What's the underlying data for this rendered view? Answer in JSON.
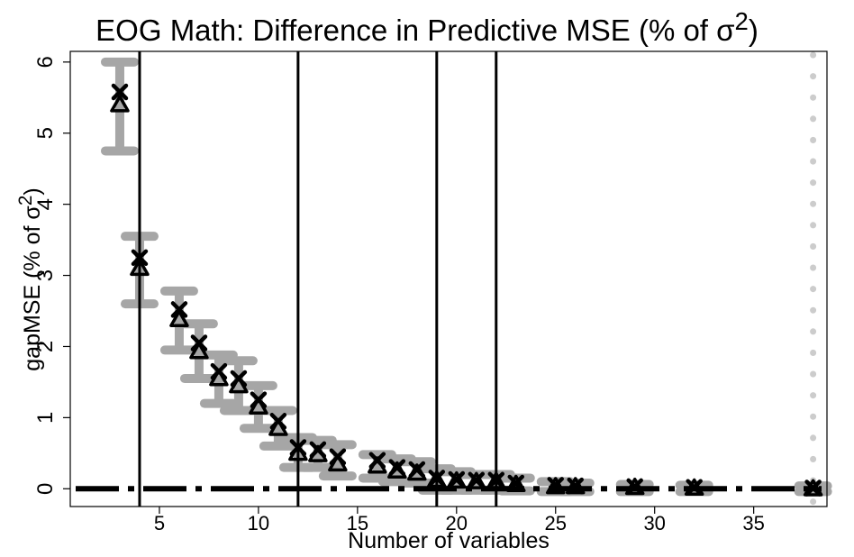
{
  "chart_data": {
    "type": "scatter",
    "title": "EOG Math: Difference in Predictive MSE (% of σ",
    "title_sup": "2",
    "title_end": ")",
    "xlabel": "Number of variables",
    "ylabel": "gapMSE (% of σ",
    "ylabel_sup": "2",
    "ylabel_end": ")",
    "xlim": [
      0.5,
      38.7
    ],
    "ylim": [
      -0.25,
      6.15
    ],
    "xticks": [
      5,
      10,
      15,
      20,
      25,
      30,
      35
    ],
    "yticks": [
      0,
      1,
      2,
      3,
      4,
      5,
      6
    ],
    "vlines": [
      4,
      12,
      19,
      22
    ],
    "dotted_vline": 38,
    "zero_line": 0,
    "series": [
      {
        "name": "gapMSE (x marker)",
        "marker": "x",
        "x": [
          3,
          4,
          6,
          7,
          8,
          9,
          10,
          11,
          12,
          13,
          14,
          16,
          17,
          18,
          19,
          20,
          21,
          22,
          23,
          25,
          26,
          29,
          32,
          38
        ],
        "y": [
          5.58,
          3.25,
          2.52,
          2.05,
          1.65,
          1.55,
          1.25,
          0.95,
          0.58,
          0.55,
          0.45,
          0.4,
          0.3,
          0.27,
          0.15,
          0.13,
          0.12,
          0.12,
          0.08,
          0.05,
          0.04,
          0.03,
          0.02,
          0.01
        ]
      },
      {
        "name": "gapMSE (triangle marker)",
        "marker": "triangle",
        "x": [
          3,
          4,
          6,
          7,
          8,
          9,
          10,
          11,
          12,
          13,
          14,
          16,
          17,
          18,
          19,
          20,
          21,
          22,
          23,
          25,
          26,
          29,
          32,
          38
        ],
        "y": [
          5.4,
          3.1,
          2.38,
          1.93,
          1.55,
          1.45,
          1.15,
          0.85,
          0.5,
          0.48,
          0.35,
          0.32,
          0.25,
          0.22,
          0.12,
          0.11,
          0.1,
          0.1,
          0.06,
          0.03,
          0.03,
          0.02,
          0.01,
          0.0
        ]
      }
    ],
    "intervals": {
      "x": [
        3,
        4,
        6,
        7,
        8,
        9,
        10,
        11,
        12,
        13,
        14,
        16,
        17,
        18,
        19,
        20,
        21,
        22,
        23,
        25,
        26,
        29,
        32,
        38
      ],
      "lower": [
        4.75,
        2.6,
        1.95,
        1.55,
        1.2,
        1.1,
        0.85,
        0.6,
        0.3,
        0.3,
        0.18,
        0.15,
        0.1,
        0.08,
        -0.02,
        -0.02,
        -0.02,
        -0.02,
        -0.03,
        -0.04,
        -0.04,
        -0.04,
        -0.04,
        -0.04
      ],
      "upper": [
        6.0,
        3.55,
        2.78,
        2.32,
        1.88,
        1.8,
        1.45,
        1.1,
        0.72,
        0.68,
        0.62,
        0.48,
        0.42,
        0.38,
        0.28,
        0.24,
        0.2,
        0.2,
        0.15,
        0.1,
        0.08,
        0.06,
        0.05,
        0.04
      ]
    },
    "colors": {
      "interval": "#a6a6a6",
      "marker": "#000000",
      "dotted": "#cccccc"
    }
  }
}
